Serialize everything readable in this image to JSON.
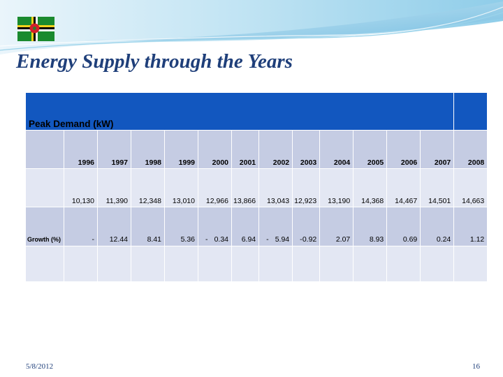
{
  "slide": {
    "title": "Energy Supply through the Years",
    "date": "5/8/2012",
    "page_number": "16"
  },
  "table": {
    "header_label": "Peak Demand (kW)",
    "years": [
      "1996",
      "1997",
      "1998",
      "1999",
      "2000",
      "2001",
      "2002",
      "2003",
      "2004",
      "2005",
      "2006",
      "2007",
      "2008"
    ],
    "peak_demand": [
      "10,130",
      "11,390",
      "12,348",
      "13,010",
      "12,966",
      "13,866",
      "13,043",
      "12,923",
      "13,190",
      "14,368",
      "14,467",
      "14,501",
      "14,663"
    ],
    "growth_label": "Growth (%)",
    "growth": [
      {
        "neg": "",
        "val": "-"
      },
      {
        "neg": "",
        "val": "12.44"
      },
      {
        "neg": "",
        "val": "8.41"
      },
      {
        "neg": "",
        "val": "5.36"
      },
      {
        "neg": "-",
        "val": "0.34"
      },
      {
        "neg": "",
        "val": "6.94"
      },
      {
        "neg": "-",
        "val": "5.94"
      },
      {
        "neg": "-",
        "val": "0.92"
      },
      {
        "neg": "",
        "val": "2.07"
      },
      {
        "neg": "",
        "val": "8.93"
      },
      {
        "neg": "",
        "val": "0.69"
      },
      {
        "neg": "",
        "val": "0.24"
      },
      {
        "neg": "",
        "val": "1.12"
      }
    ]
  }
}
